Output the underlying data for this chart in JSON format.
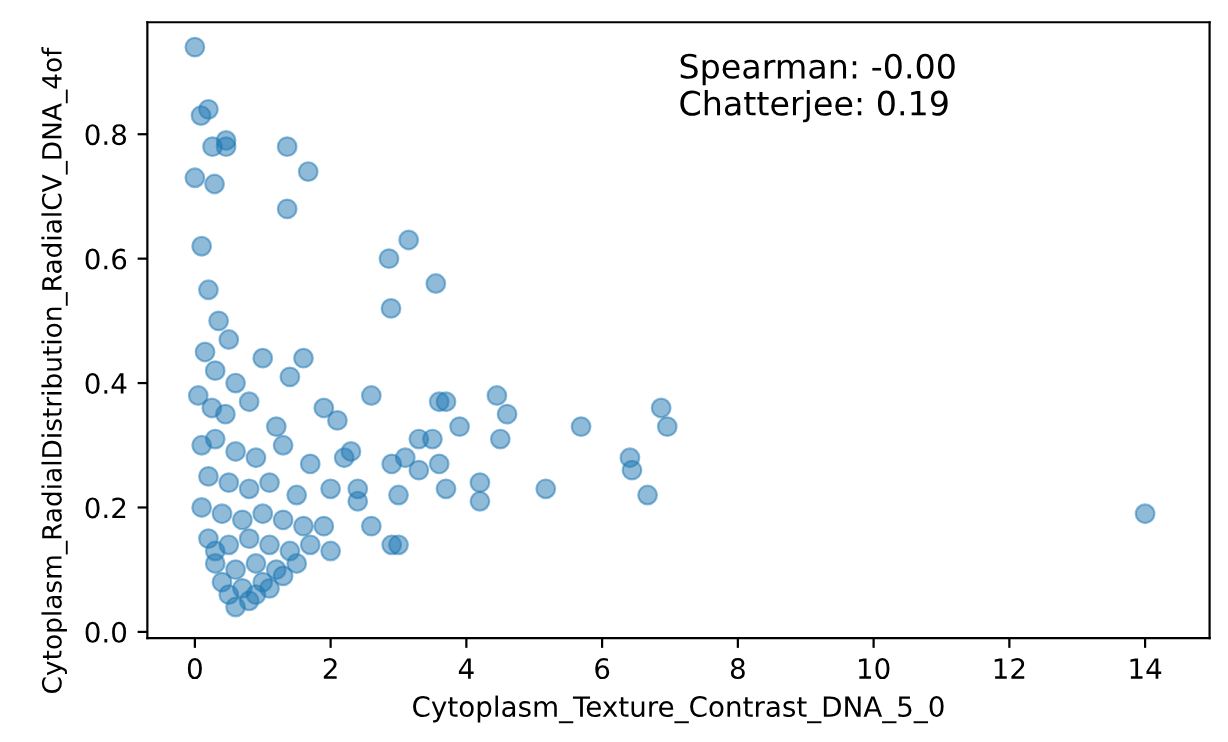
{
  "chart_data": {
    "type": "scatter",
    "xlabel": "Cytoplasm_Texture_Contrast_DNA_5_0",
    "ylabel": "Cytoplasm_RadialDistribution_RadialCV_DNA_4of",
    "annotations": [
      "Spearman: -0.00",
      "Chatterjee: 0.19"
    ],
    "xlim": [
      -0.7,
      14.95
    ],
    "ylim": [
      -0.01,
      0.98
    ],
    "xticks": [
      0,
      2,
      4,
      6,
      8,
      10,
      12,
      14
    ],
    "yticks": [
      {
        "value": 0.0,
        "label": "0.0"
      },
      0.2,
      0.4,
      0.6,
      0.8
    ],
    "grid": false,
    "marker": "circle",
    "series": [
      {
        "color": "#1f77b4",
        "x": [
          0,
          0.2,
          0.09,
          0.26,
          0.46,
          0.46,
          1.36,
          1.67,
          0,
          0.29,
          1.36,
          2.86,
          3.15,
          2.89,
          3.55,
          0.1,
          0.2,
          0.35,
          0.5,
          0.15,
          0.3,
          0.6,
          1.0,
          1.4,
          0.05,
          0.25,
          0.45,
          0.8,
          1.2,
          1.9,
          2.1,
          0.1,
          0.3,
          0.6,
          0.9,
          1.3,
          1.7,
          2.2,
          0.2,
          0.5,
          0.8,
          1.1,
          1.5,
          2.0,
          2.4,
          0.1,
          0.4,
          0.7,
          1.0,
          1.3,
          1.6,
          1.9,
          0.2,
          0.5,
          0.8,
          1.1,
          1.4,
          1.7,
          2.0,
          0.3,
          0.6,
          0.9,
          1.2,
          1.5,
          0.4,
          0.7,
          1.0,
          1.3,
          0.5,
          0.8,
          1.1,
          0.6,
          0.9,
          0.3,
          1.6,
          2.6,
          2.3,
          2.4,
          2.6,
          2.9,
          3.0,
          3.1,
          2.9,
          3.0,
          3.3,
          3.3,
          3.5,
          3.6,
          3.7,
          3.6,
          3.7,
          3.9,
          4.2,
          4.2,
          4.45,
          4.6,
          4.5,
          5.17,
          5.69,
          6.41,
          6.44,
          6.67,
          6.87,
          6.96,
          14.0
        ],
        "values": [
          0.94,
          0.84,
          0.83,
          0.78,
          0.78,
          0.79,
          0.78,
          0.74,
          0.73,
          0.72,
          0.68,
          0.6,
          0.63,
          0.52,
          0.56,
          0.62,
          0.55,
          0.5,
          0.47,
          0.45,
          0.42,
          0.4,
          0.44,
          0.41,
          0.38,
          0.36,
          0.35,
          0.37,
          0.33,
          0.36,
          0.34,
          0.3,
          0.31,
          0.29,
          0.28,
          0.3,
          0.27,
          0.28,
          0.25,
          0.24,
          0.23,
          0.24,
          0.22,
          0.23,
          0.21,
          0.2,
          0.19,
          0.18,
          0.19,
          0.18,
          0.17,
          0.17,
          0.15,
          0.14,
          0.15,
          0.14,
          0.13,
          0.14,
          0.13,
          0.11,
          0.1,
          0.11,
          0.1,
          0.11,
          0.08,
          0.07,
          0.08,
          0.09,
          0.06,
          0.05,
          0.07,
          0.04,
          0.06,
          0.13,
          0.44,
          0.38,
          0.29,
          0.23,
          0.17,
          0.14,
          0.14,
          0.28,
          0.27,
          0.22,
          0.31,
          0.26,
          0.31,
          0.27,
          0.23,
          0.37,
          0.37,
          0.33,
          0.21,
          0.24,
          0.38,
          0.35,
          0.31,
          0.23,
          0.33,
          0.28,
          0.26,
          0.22,
          0.36,
          0.33,
          0.19
        ]
      }
    ]
  }
}
